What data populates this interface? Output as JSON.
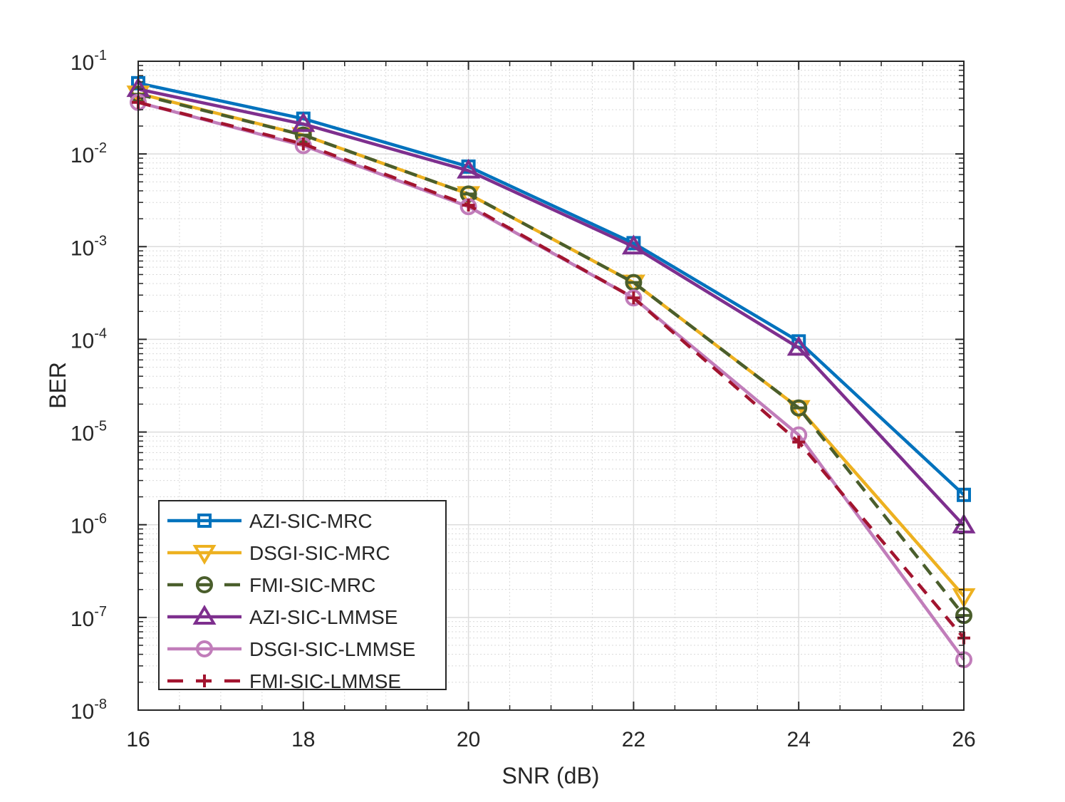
{
  "chart_data": {
    "type": "line",
    "title": "",
    "xlabel": "SNR (dB)",
    "ylabel": "BER",
    "xlim": [
      16,
      26
    ],
    "ylim": [
      1e-08,
      0.1
    ],
    "yscale": "log",
    "grid": true,
    "minor_grid": true,
    "x_ticks": [
      16,
      18,
      20,
      22,
      24,
      26
    ],
    "x_tick_labels": [
      "16",
      "18",
      "20",
      "22",
      "24",
      "26"
    ],
    "y_ticks": [
      {
        "value": 0.1,
        "base": "10",
        "exp": "-1"
      },
      {
        "value": 0.01,
        "base": "10",
        "exp": "-2"
      },
      {
        "value": 0.001,
        "base": "10",
        "exp": "-3"
      },
      {
        "value": 0.0001,
        "base": "10",
        "exp": "-4"
      },
      {
        "value": 1e-05,
        "base": "10",
        "exp": "-5"
      },
      {
        "value": 1e-06,
        "base": "10",
        "exp": "-6"
      },
      {
        "value": 1e-07,
        "base": "10",
        "exp": "-7"
      },
      {
        "value": 1e-08,
        "base": "10",
        "exp": "-8"
      }
    ],
    "x": [
      16,
      18,
      20,
      22,
      24,
      26
    ],
    "legend_position": "bottom-left",
    "series": [
      {
        "name": "AZI-SIC-MRC",
        "color": "#0072BD",
        "marker": "square",
        "dash": "solid",
        "values": [
          0.058,
          0.024,
          0.0073,
          0.00109,
          9.5e-05,
          2.1e-06
        ]
      },
      {
        "name": "DSGI-SIC-MRC",
        "color": "#EDB120",
        "marker": "triangle-down",
        "dash": "solid",
        "values": [
          0.045,
          0.016,
          0.0037,
          0.00041,
          1.82e-05,
          1.7e-07
        ]
      },
      {
        "name": "FMI-SIC-MRC",
        "color": "#4A5E2C",
        "marker": "circle-minus",
        "dash": "dashed",
        "values": [
          0.044,
          0.016,
          0.0037,
          0.00041,
          1.82e-05,
          1.05e-07
        ]
      },
      {
        "name": "AZI-SIC-LMMSE",
        "color": "#7E2F8E",
        "marker": "triangle-up",
        "dash": "solid",
        "values": [
          0.05,
          0.021,
          0.0066,
          0.001,
          8.1e-05,
          9.8e-07
        ]
      },
      {
        "name": "DSGI-SIC-LMMSE",
        "color": "#C17DBA",
        "marker": "circle",
        "dash": "solid",
        "values": [
          0.036,
          0.0123,
          0.0027,
          0.00028,
          9.3e-06,
          3.5e-08
        ]
      },
      {
        "name": "FMI-SIC-LMMSE",
        "color": "#A2142F",
        "marker": "plus",
        "dash": "dashed",
        "values": [
          0.036,
          0.0128,
          0.0028,
          0.00028,
          7.8e-06,
          6e-08
        ]
      }
    ]
  }
}
